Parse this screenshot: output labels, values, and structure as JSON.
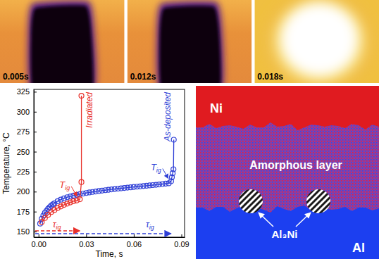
{
  "images": [
    {
      "label": "0.005s"
    },
    {
      "label": "0.012s"
    },
    {
      "label": "0.018s"
    }
  ],
  "chart_data": {
    "type": "scatter",
    "x_label": "Time, s",
    "y_label": "Temperature, °C",
    "xlim": [
      -0.003,
      0.092
    ],
    "xticks": [
      {
        "value": 0,
        "label": "0.00"
      },
      0.03,
      0.06,
      0.09
    ],
    "ylim": [
      143,
      328
    ],
    "yticks": [
      150,
      175,
      200,
      225,
      250,
      275,
      300,
      325
    ],
    "ignition_label": {
      "text": "T",
      "sub": "ig"
    },
    "delay_label": {
      "text": "τ",
      "sub": "ig"
    },
    "series": [
      {
        "name": "Irradiated",
        "color": "#e8302a",
        "marker": "circle-open",
        "line_style": "solid",
        "x": [
          0.002,
          0.004,
          0.006,
          0.008,
          0.01,
          0.012,
          0.014,
          0.016,
          0.018,
          0.02,
          0.022,
          0.024,
          0.026,
          0.027,
          0.027
        ],
        "values": [
          162,
          167,
          171,
          174.5,
          177,
          179.5,
          181.5,
          183.5,
          185,
          186.5,
          188,
          189,
          190.5,
          212,
          320
        ],
        "ignition_time": 0.026,
        "ignition_temperature": 190.5
      },
      {
        "name": "As-deposited",
        "color": "#2f3fd6",
        "marker": "circle-open",
        "line_style": "solid",
        "x": [
          0.001,
          0.002,
          0.003,
          0.004,
          0.005,
          0.006,
          0.007,
          0.008,
          0.009,
          0.01,
          0.012,
          0.014,
          0.016,
          0.018,
          0.02,
          0.022,
          0.024,
          0.026,
          0.028,
          0.03,
          0.032,
          0.034,
          0.036,
          0.038,
          0.04,
          0.042,
          0.044,
          0.046,
          0.048,
          0.05,
          0.052,
          0.054,
          0.056,
          0.058,
          0.06,
          0.062,
          0.064,
          0.066,
          0.068,
          0.07,
          0.072,
          0.074,
          0.076,
          0.078,
          0.08,
          0.082,
          0.0835,
          0.084,
          0.0845,
          0.085,
          0.0852
        ],
        "values": [
          160,
          166,
          170,
          173.5,
          176,
          178.5,
          180.5,
          182.5,
          184,
          185.5,
          188,
          190,
          191.5,
          193,
          194,
          195,
          196,
          196.8,
          197.6,
          198.3,
          199,
          199.6,
          200.2,
          200.8,
          201.3,
          201.8,
          202.3,
          202.8,
          203.3,
          203.8,
          204.2,
          204.6,
          205,
          205.4,
          205.8,
          206.2,
          206.6,
          207,
          207.4,
          207.8,
          208.2,
          208.6,
          209,
          209.5,
          210,
          210.5,
          213,
          218,
          223,
          228,
          265
        ],
        "ignition_time": 0.0835,
        "ignition_temperature": 213
      }
    ]
  },
  "diagram": {
    "top": "Ni",
    "layer": "Amorphous layer",
    "particles": "Al₃Ni",
    "bottom": "Al"
  }
}
